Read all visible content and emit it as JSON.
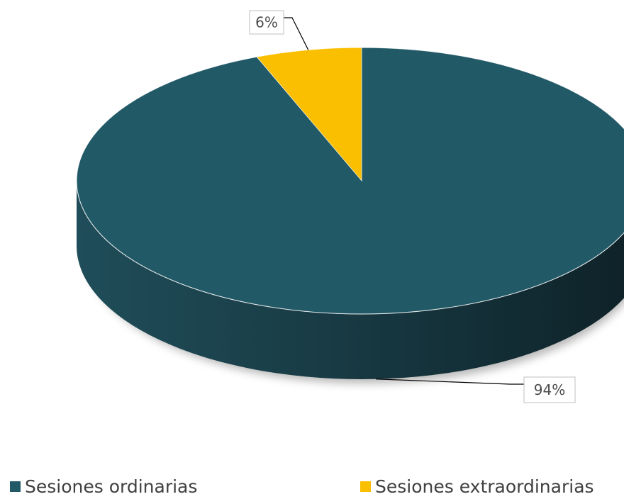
{
  "chart_data": {
    "type": "pie",
    "categories": [
      "Sesiones ordinarias",
      "Sesiones extraordinarias"
    ],
    "values": [
      94,
      6
    ],
    "data_labels": [
      "94%",
      "6%"
    ],
    "colors": [
      "#225967",
      "#FABF00"
    ],
    "legend_position": "bottom",
    "three_d": true
  }
}
